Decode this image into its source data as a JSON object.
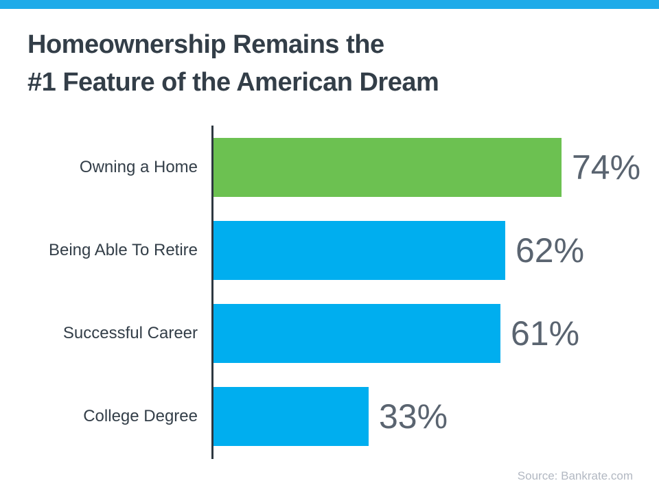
{
  "page": {
    "accent_color": "#1FABE9",
    "title_line1": "Homeownership Remains the",
    "title_line2": "#1 Feature of the American Dream",
    "source": "Source: Bankrate.com"
  },
  "chart_data": {
    "type": "bar",
    "orientation": "horizontal",
    "title": "Homeownership Remains the #1 Feature of the American Dream",
    "categories": [
      "Owning a Home",
      "Being Able To Retire",
      "Successful Career",
      "College Degree"
    ],
    "values": [
      74,
      62,
      61,
      33
    ],
    "value_labels": [
      "74%",
      "62%",
      "61%",
      "33%"
    ],
    "bar_colors": [
      "#6CC151",
      "#00AEEF",
      "#00AEEF",
      "#00AEEF"
    ],
    "highlight_color": "#6CC151",
    "default_color": "#00AEEF",
    "axis_color": "#2E3840",
    "label_color": "#333E48",
    "value_label_color": "#5A6470",
    "xlim": [
      0,
      100
    ],
    "grid": false,
    "legend": false,
    "source": "Source: Bankrate.com"
  }
}
